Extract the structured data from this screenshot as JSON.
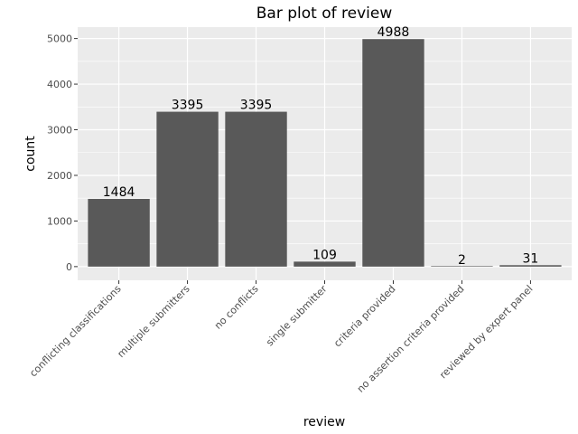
{
  "chart_data": {
    "type": "bar",
    "title": "Bar plot of review",
    "xlabel": "review",
    "ylabel": "count",
    "categories": [
      "conflicting classifications",
      "multiple submitters",
      "no conflicts",
      "single submitter",
      "criteria provided",
      "no assertion criteria provided",
      "reviewed by expert panel"
    ],
    "values": [
      1484,
      3395,
      3395,
      109,
      4988,
      2,
      31
    ],
    "value_labels": [
      "1484",
      "3395",
      "3395",
      "109",
      "4988",
      "2",
      "31"
    ],
    "ylim": [
      -300,
      5250
    ],
    "yticks": [
      0,
      1000,
      2000,
      3000,
      4000,
      5000
    ],
    "ytick_labels": [
      "0",
      "1000",
      "2000",
      "3000",
      "4000",
      "5000"
    ],
    "grid": true,
    "legend": "none",
    "colors": {
      "panel": "#ebebeb",
      "bar": "#595959",
      "grid": "#ffffff"
    }
  }
}
